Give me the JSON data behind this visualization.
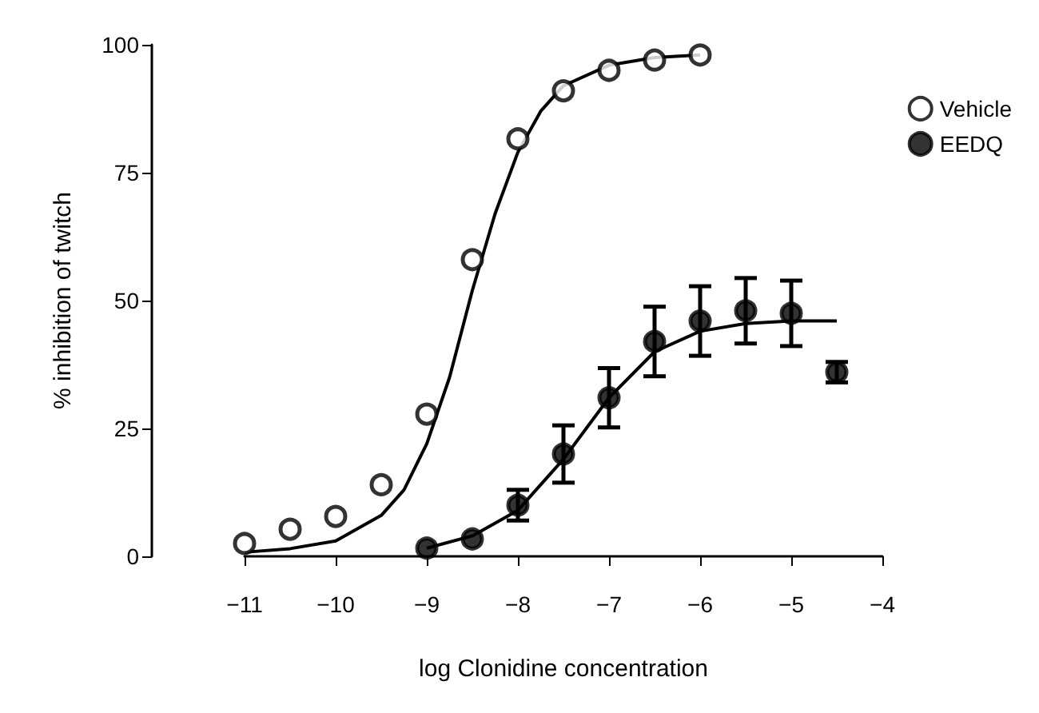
{
  "chart_data": {
    "type": "scatter",
    "xlabel": "log Clonidine concentration",
    "ylabel": "% inhibition of twitch",
    "xlim": [
      -11,
      -4
    ],
    "xticks": [
      -11,
      -10,
      -9,
      -8,
      -7,
      -6,
      -5,
      -4
    ],
    "ylim": [
      0,
      100
    ],
    "yticks": [
      0,
      25,
      50,
      75,
      100
    ],
    "grid": false,
    "legend": "top right",
    "marker": "circle",
    "series": [
      {
        "name": "Vehicle",
        "color": "#ffffff",
        "x": [
          -11,
          -10.5,
          -10,
          -9.5,
          -9,
          -8.5,
          -8,
          -7.5,
          -7,
          -6.5,
          -6
        ],
        "values": [
          2.5,
          5.3,
          7.8,
          14,
          27.8,
          58,
          81.6,
          91,
          95,
          97,
          98
        ]
      },
      {
        "name": "EEDQ",
        "color": "#000000",
        "x": [
          -9,
          -8.5,
          -8,
          -7.5,
          -7,
          -6.5,
          -6,
          -5.5,
          -5,
          -4.5
        ],
        "values": [
          1.6,
          3.4,
          10,
          20,
          31,
          42,
          46,
          48,
          47.5,
          36
        ],
        "errors": [
          null,
          null,
          3,
          5.6,
          5.8,
          6.8,
          6.8,
          6.4,
          6.4,
          2
        ]
      },
      {
        "type": "line",
        "color": "#000000",
        "marker": "none",
        "x": [
          -11,
          -10.5,
          -10,
          -9.5,
          -9.25,
          -9,
          -8.75,
          -8.5,
          -8.25,
          -8,
          -7.75,
          -7.5,
          -7,
          -6.5,
          -6
        ],
        "values": [
          0.8,
          1.5,
          3,
          8,
          13,
          22,
          35,
          52,
          67,
          79,
          87,
          92,
          96,
          97.5,
          98
        ]
      },
      {
        "type": "line",
        "color": "#000000",
        "marker": "none",
        "x": [
          -9,
          -8.5,
          -8,
          -7.5,
          -7.25,
          -7,
          -6.5,
          -6,
          -5.5,
          -5,
          -4.5
        ],
        "values": [
          1.6,
          4,
          9,
          19,
          25,
          31,
          40,
          44,
          45.5,
          46,
          46
        ]
      }
    ]
  }
}
